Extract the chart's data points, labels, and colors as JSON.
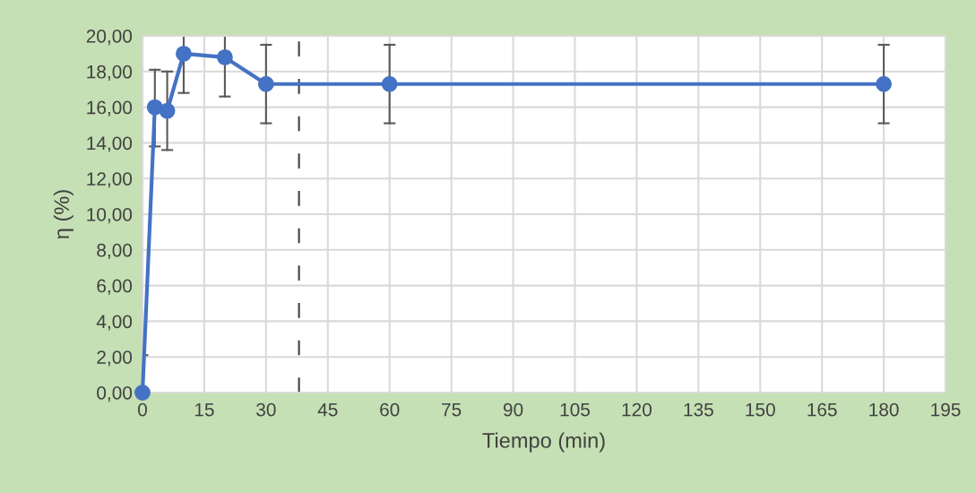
{
  "chart_data": {
    "type": "line",
    "xlabel": "Tiempo (min)",
    "ylabel": "η (%)",
    "x": [
      0,
      3,
      6,
      10,
      20,
      30,
      60,
      180
    ],
    "series": [
      {
        "color": "#4472c4",
        "values": [
          0,
          16.0,
          15.8,
          19.0,
          18.8,
          17.3,
          17.3,
          17.3
        ],
        "errors": [
          [
            0,
            2.1
          ],
          [
            13.8,
            18.1
          ],
          [
            13.6,
            18.0
          ],
          [
            16.8,
            20
          ],
          [
            16.6,
            20
          ],
          [
            15.1,
            19.5
          ],
          [
            15.1,
            19.5
          ],
          [
            15.1,
            19.5
          ]
        ]
      }
    ],
    "xlim": [
      0,
      195
    ],
    "xticks": [
      0,
      15,
      30,
      45,
      60,
      75,
      90,
      105,
      120,
      135,
      150,
      165,
      180,
      195
    ],
    "ylim": [
      0,
      20
    ],
    "yticks": [
      {
        "value": 0,
        "label": "0,00"
      },
      {
        "value": 2,
        "label": "2,00"
      },
      {
        "value": 4,
        "label": "4,00"
      },
      {
        "value": 6,
        "label": "6,00"
      },
      {
        "value": 8,
        "label": "8,00"
      },
      {
        "value": 10,
        "label": "10,00"
      },
      {
        "value": 12,
        "label": "12,00"
      },
      {
        "value": 14,
        "label": "14,00"
      },
      {
        "value": 16,
        "label": "16,00"
      },
      {
        "value": 18,
        "label": "18,00"
      },
      {
        "value": 20,
        "label": "20,00"
      }
    ],
    "ref_lines": [
      {
        "axis": "x",
        "value": 38,
        "color": "#404040",
        "line_style": "dashed"
      }
    ],
    "grid": true,
    "marker": "circle",
    "line_style": "solid"
  }
}
